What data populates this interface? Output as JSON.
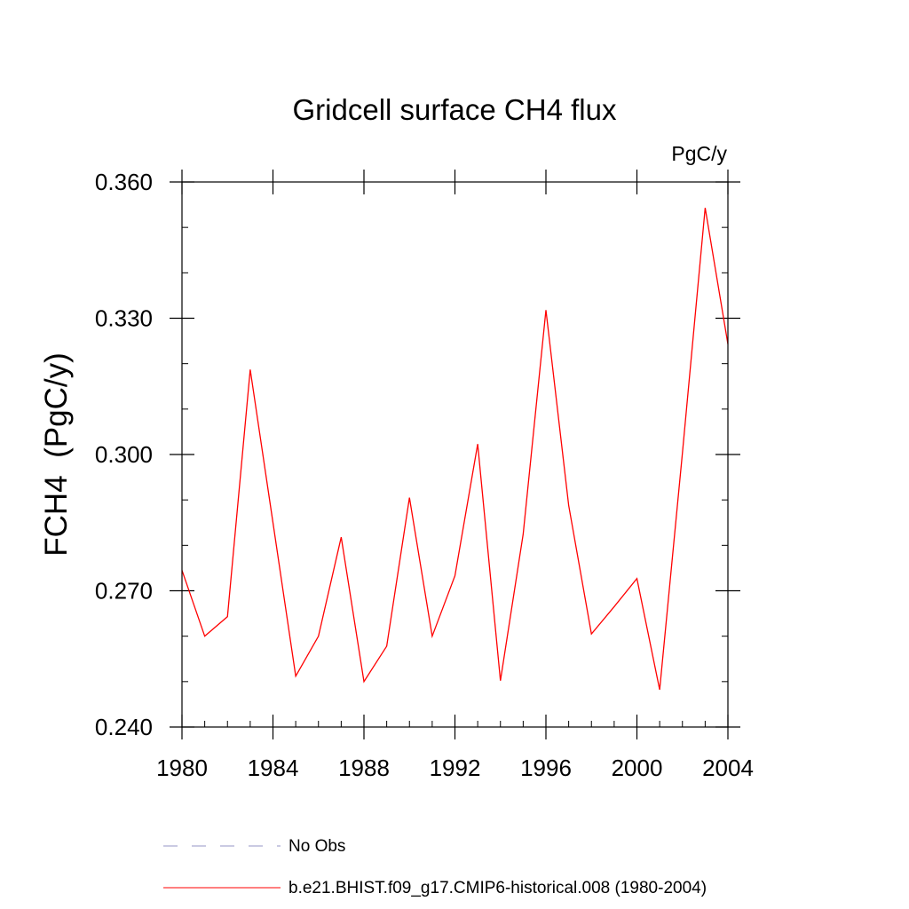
{
  "chart_data": {
    "type": "line",
    "title": "Gridcell surface CH4 flux",
    "units_label": "PgC/y",
    "ylabel": "FCH4  (PgC/y)",
    "xlabel": "",
    "xlim": [
      1980,
      2004
    ],
    "ylim": [
      0.24,
      0.36
    ],
    "x_ticks": [
      1980,
      1984,
      1988,
      1992,
      1996,
      2000,
      2004
    ],
    "x_tick_labels": [
      "1980",
      "1984",
      "1988",
      "1992",
      "1996",
      "2000",
      "2004"
    ],
    "x_minor_step": 1,
    "y_ticks": [
      0.24,
      0.27,
      0.3,
      0.33,
      0.36
    ],
    "y_tick_labels": [
      "0.240",
      "0.270",
      "0.300",
      "0.330",
      "0.360"
    ],
    "y_minor_step": 0.01,
    "grid": false,
    "series": [
      {
        "name": "b.e21.BHIST.f09_g17.CMIP6-historical.008 (1980-2004)",
        "color": "#ff0000",
        "dash": "solid",
        "x": [
          1980,
          1981,
          1982,
          1983,
          1984,
          1985,
          1986,
          1987,
          1988,
          1989,
          1990,
          1991,
          1992,
          1993,
          1994,
          1995,
          1996,
          1997,
          1998,
          1999,
          2000,
          2001,
          2002,
          2003,
          2004
        ],
        "values": [
          0.2745,
          0.26,
          0.2643,
          0.3187,
          0.285,
          0.2512,
          0.26,
          0.2818,
          0.25,
          0.2578,
          0.2905,
          0.26,
          0.2733,
          0.3023,
          0.2502,
          0.2825,
          0.3318,
          0.2888,
          0.2605,
          0.2665,
          0.2727,
          0.2482,
          0.3003,
          0.3543,
          0.3243
        ]
      }
    ],
    "legend": [
      {
        "label": "No Obs",
        "color": "#9494c4",
        "dash": "dashed"
      },
      {
        "label": "b.e21.BHIST.f09_g17.CMIP6-historical.008 (1980-2004)",
        "color": "#ff0000",
        "dash": "solid"
      }
    ],
    "legend_position": "bottom"
  }
}
